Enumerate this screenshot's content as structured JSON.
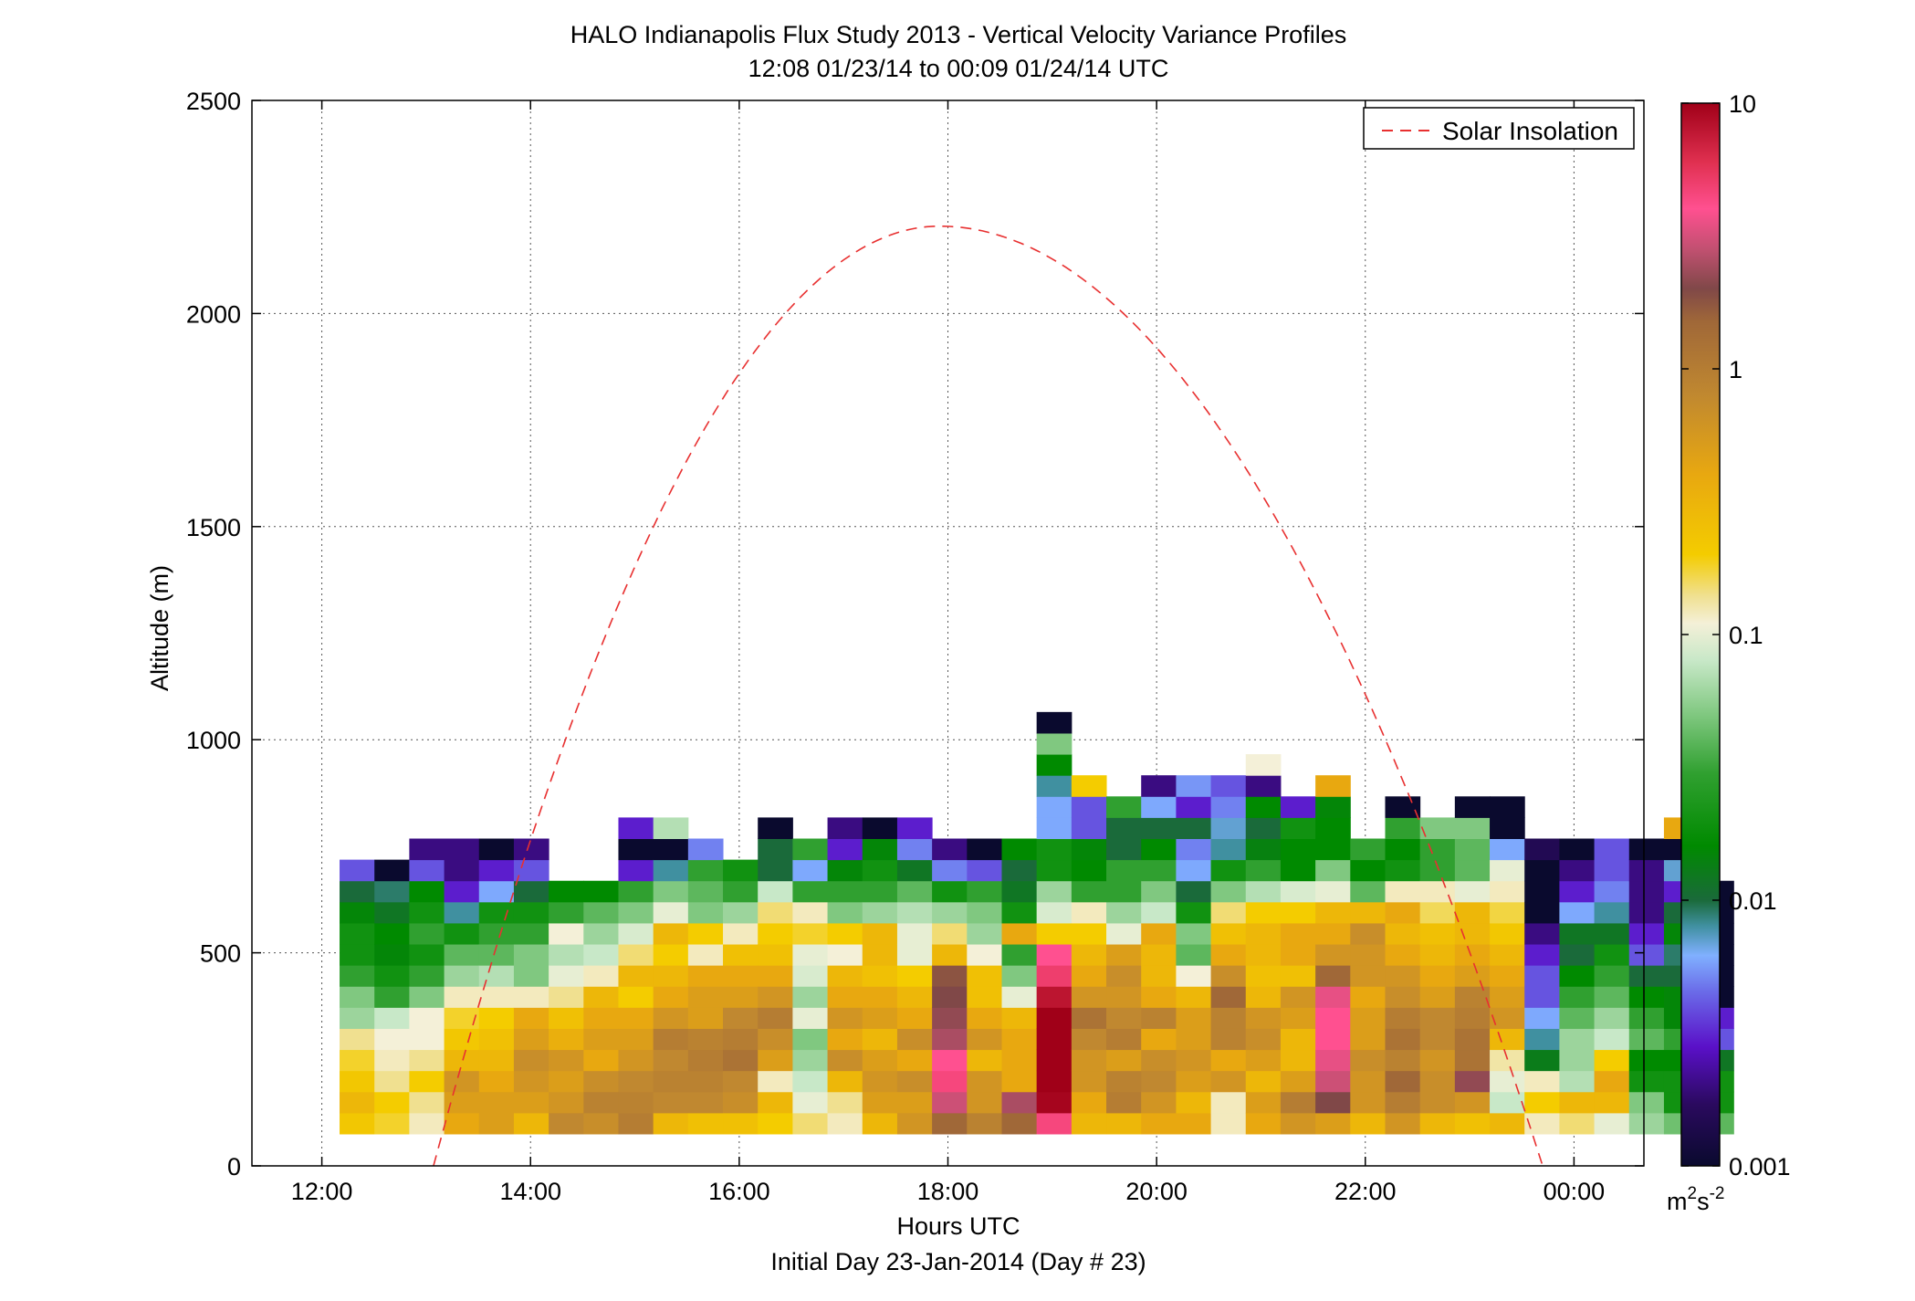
{
  "chart_data": {
    "type": "heatmap",
    "title": "HALO Indianapolis Flux Study 2013 - Vertical Velocity Variance Profiles",
    "subtitle": "12:08 01/23/14 to 00:09 01/24/14  UTC",
    "xlabel": "Hours UTC",
    "xlabel_sub": "Initial Day 23-Jan-2014 (Day # 23)",
    "ylabel": "Altitude (m)",
    "xlim_hours": [
      11.33,
      24.67
    ],
    "ylim": [
      0,
      2500
    ],
    "grid": true,
    "x_ticks": [
      {
        "value": 12,
        "label": "12:00"
      },
      {
        "value": 14,
        "label": "14:00"
      },
      {
        "value": 16,
        "label": "16:00"
      },
      {
        "value": 18,
        "label": "18:00"
      },
      {
        "value": 20,
        "label": "20:00"
      },
      {
        "value": 22,
        "label": "22:00"
      },
      {
        "value": 24,
        "label": "00:00"
      }
    ],
    "y_ticks": [
      {
        "value": 0,
        "label": "0"
      },
      {
        "value": 500,
        "label": "500"
      },
      {
        "value": 1000,
        "label": "1000"
      },
      {
        "value": 1500,
        "label": "1500"
      },
      {
        "value": 2000,
        "label": "2000"
      },
      {
        "value": 2500,
        "label": "2500"
      }
    ],
    "colorbar": {
      "scale": "log",
      "range": [
        0.001,
        10
      ],
      "ticks": [
        {
          "value": 0.001,
          "label": "0.001"
        },
        {
          "value": 0.01,
          "label": "0.01"
        },
        {
          "value": 0.1,
          "label": "0.1"
        },
        {
          "value": 1,
          "label": "1"
        },
        {
          "value": 10,
          "label": "10"
        }
      ],
      "unit_base": "m",
      "unit_sup1": "2",
      "unit_mid": "s",
      "unit_sup2": "-2",
      "stops": [
        {
          "v": 0.001,
          "color": "#0a0a2e"
        },
        {
          "v": 0.0017,
          "color": "#2a0a5e"
        },
        {
          "v": 0.0028,
          "color": "#5a10c8"
        },
        {
          "v": 0.0045,
          "color": "#6a6ae8"
        },
        {
          "v": 0.0062,
          "color": "#80b0ff"
        },
        {
          "v": 0.008,
          "color": "#4090a0"
        },
        {
          "v": 0.01,
          "color": "#1a6a3a"
        },
        {
          "v": 0.016,
          "color": "#008a00"
        },
        {
          "v": 0.03,
          "color": "#30a030"
        },
        {
          "v": 0.05,
          "color": "#80c880"
        },
        {
          "v": 0.08,
          "color": "#c8e8c8"
        },
        {
          "v": 0.11,
          "color": "#f4f0d8"
        },
        {
          "v": 0.14,
          "color": "#f0e090"
        },
        {
          "v": 0.2,
          "color": "#f4cc00"
        },
        {
          "v": 0.4,
          "color": "#e8a810"
        },
        {
          "v": 0.8,
          "color": "#c08830"
        },
        {
          "v": 1.5,
          "color": "#a06838"
        },
        {
          "v": 2.0,
          "color": "#804848"
        },
        {
          "v": 2.8,
          "color": "#c05070"
        },
        {
          "v": 4.0,
          "color": "#ff5090"
        },
        {
          "v": 6.0,
          "color": "#e03050"
        },
        {
          "v": 10,
          "color": "#a00018"
        }
      ]
    },
    "heatmap": {
      "altitude_bins_m": {
        "start": 75,
        "step": 49.5
      },
      "time_start_h": 12.17,
      "time_step_h": 0.334,
      "columns": [
        [
          0.22,
          0.3,
          0.22,
          0.18,
          0.14,
          0.06,
          0.05,
          0.03,
          0.02,
          0.02,
          0.015,
          0.01,
          0.004
        ],
        [
          0.18,
          0.2,
          0.14,
          0.12,
          0.11,
          0.08,
          0.03,
          0.02,
          0.015,
          0.016,
          0.012,
          0.009,
          0.001
        ],
        [
          0.12,
          0.14,
          0.2,
          0.14,
          0.11,
          0.11,
          0.05,
          0.03,
          0.02,
          0.03,
          0.02,
          0.016,
          0.004,
          0.002
        ],
        [
          0.4,
          0.5,
          0.6,
          0.3,
          0.22,
          0.18,
          0.12,
          0.06,
          0.04,
          0.02,
          0.008,
          0.003,
          0.002,
          0.002
        ],
        [
          0.5,
          0.5,
          0.4,
          0.3,
          0.25,
          0.2,
          0.12,
          0.07,
          0.04,
          0.03,
          0.02,
          0.006,
          0.003,
          0.001
        ],
        [
          0.3,
          0.5,
          0.6,
          0.7,
          0.5,
          0.4,
          0.12,
          0.05,
          0.05,
          0.03,
          0.02,
          0.01,
          0.004,
          0.002
        ],
        [
          0.8,
          0.6,
          0.5,
          0.6,
          0.35,
          0.25,
          0.14,
          0.1,
          0.07,
          0.11,
          0.03,
          0.016
        ],
        [
          0.7,
          0.9,
          0.7,
          0.4,
          0.5,
          0.4,
          0.3,
          0.12,
          0.08,
          0.06,
          0.04,
          0.016
        ],
        [
          1.0,
          0.9,
          0.8,
          0.6,
          0.5,
          0.4,
          0.2,
          0.3,
          0.15,
          0.09,
          0.05,
          0.03,
          0.003,
          0.001,
          0.003
        ],
        [
          0.3,
          0.8,
          0.9,
          0.8,
          1.0,
          0.6,
          0.4,
          0.3,
          0.2,
          0.3,
          0.1,
          0.05,
          0.008,
          0.001,
          0.07
        ],
        [
          0.25,
          0.8,
          0.9,
          1.0,
          0.9,
          0.5,
          0.5,
          0.4,
          0.12,
          0.2,
          0.05,
          0.04,
          0.03,
          0.005
        ],
        [
          0.25,
          0.7,
          0.8,
          1.2,
          1.0,
          0.8,
          0.5,
          0.4,
          0.25,
          0.12,
          0.06,
          0.03,
          0.02
        ],
        [
          0.2,
          0.3,
          0.12,
          0.5,
          0.7,
          1.0,
          0.6,
          0.4,
          0.25,
          0.2,
          0.15,
          0.08,
          0.01,
          0.01,
          0.001
        ],
        [
          0.15,
          0.1,
          0.08,
          0.06,
          0.05,
          0.1,
          0.06,
          0.09,
          0.1,
          0.18,
          0.12,
          0.03,
          0.006,
          0.03
        ],
        [
          0.12,
          0.14,
          0.3,
          0.7,
          0.4,
          0.6,
          0.4,
          0.3,
          0.11,
          0.2,
          0.05,
          0.03,
          0.015,
          0.003,
          0.002
        ],
        [
          0.3,
          0.5,
          0.6,
          0.5,
          0.3,
          0.5,
          0.4,
          0.25,
          0.3,
          0.3,
          0.06,
          0.03,
          0.02,
          0.015,
          0.001
        ],
        [
          0.6,
          0.5,
          0.7,
          0.4,
          0.7,
          0.4,
          0.3,
          0.2,
          0.1,
          0.1,
          0.07,
          0.04,
          0.012,
          0.005,
          0.003
        ],
        [
          1.5,
          3.0,
          4.5,
          4.0,
          2.5,
          2.2,
          2.0,
          1.8,
          0.3,
          0.15,
          0.06,
          0.02,
          0.005,
          0.002
        ],
        [
          0.9,
          0.6,
          0.6,
          0.3,
          0.6,
          0.4,
          0.25,
          0.25,
          0.11,
          0.06,
          0.05,
          0.03,
          0.004,
          0.001
        ],
        [
          1.5,
          2.5,
          0.4,
          0.4,
          0.4,
          0.3,
          0.1,
          0.05,
          0.03,
          0.4,
          0.02,
          0.012,
          0.01,
          0.016
        ],
        [
          4.5,
          9.5,
          10,
          10,
          10,
          10,
          8,
          5,
          4,
          0.2,
          0.09,
          0.06,
          0.02,
          0.02,
          0.006,
          0.006,
          0.008,
          0.016,
          0.05,
          0.001
        ],
        [
          0.3,
          0.4,
          0.6,
          0.6,
          0.8,
          1.2,
          0.6,
          0.4,
          0.3,
          0.2,
          0.12,
          0.03,
          0.016,
          0.015,
          0.004,
          0.004,
          0.2
        ],
        [
          0.3,
          1.0,
          0.9,
          0.5,
          1.0,
          0.8,
          0.6,
          0.7,
          0.5,
          0.1,
          0.06,
          0.03,
          0.03,
          0.01,
          0.01,
          0.03
        ],
        [
          0.4,
          0.6,
          0.8,
          0.7,
          0.4,
          0.9,
          0.4,
          0.3,
          0.3,
          0.4,
          0.08,
          0.05,
          0.03,
          0.016,
          0.01,
          0.006,
          0.002
        ],
        [
          0.4,
          0.3,
          0.5,
          0.6,
          0.5,
          0.5,
          0.3,
          0.11,
          0.04,
          0.05,
          0.02,
          0.01,
          0.006,
          0.005,
          0.01,
          0.003,
          0.0055
        ],
        [
          0.12,
          0.12,
          0.6,
          0.4,
          0.9,
          0.9,
          1.5,
          0.7,
          0.4,
          0.25,
          0.15,
          0.05,
          0.02,
          0.008,
          0.007,
          0.005,
          0.004
        ],
        [
          0.4,
          0.5,
          0.3,
          0.5,
          0.7,
          0.6,
          0.3,
          0.25,
          0.3,
          0.3,
          0.2,
          0.07,
          0.03,
          0.014,
          0.01,
          0.016,
          0.002,
          0.11
        ],
        [
          0.6,
          1.0,
          0.5,
          0.3,
          0.3,
          0.5,
          0.6,
          0.25,
          0.4,
          0.4,
          0.2,
          0.09,
          0.016,
          0.016,
          0.02,
          0.003
        ],
        [
          0.5,
          2.0,
          3.0,
          3.5,
          4.0,
          4.0,
          3.5,
          1.5,
          0.6,
          0.4,
          0.3,
          0.1,
          0.05,
          0.016,
          0.016,
          0.015,
          0.4
        ],
        [
          0.3,
          0.6,
          0.6,
          0.7,
          0.5,
          0.5,
          0.4,
          0.6,
          0.6,
          0.7,
          0.3,
          0.04,
          0.016,
          0.03
        ],
        [
          0.6,
          1.0,
          1.5,
          0.9,
          1.2,
          1.0,
          0.7,
          0.6,
          0.4,
          0.3,
          0.4,
          0.12,
          0.02,
          0.016,
          0.03,
          0.001
        ],
        [
          0.3,
          0.7,
          0.7,
          0.6,
          0.8,
          0.8,
          0.5,
          0.4,
          0.3,
          0.25,
          0.16,
          0.12,
          0.03,
          0.03,
          0.05
        ],
        [
          0.25,
          0.6,
          2.2,
          1.2,
          1.2,
          1.0,
          0.9,
          0.5,
          0.4,
          0.3,
          0.3,
          0.1,
          0.04,
          0.04,
          0.05,
          0.001
        ],
        [
          0.3,
          0.08,
          0.1,
          0.13,
          0.3,
          0.6,
          0.5,
          0.4,
          0.3,
          0.22,
          0.17,
          0.12,
          0.1,
          0.006,
          0.001,
          0.001
        ],
        [
          0.12,
          0.2,
          0.12,
          0.013,
          0.008,
          0.006,
          0.004,
          0.004,
          0.003,
          0.002,
          0.001,
          0.001,
          0.001,
          0.0015
        ],
        [
          0.15,
          0.3,
          0.07,
          0.06,
          0.06,
          0.04,
          0.03,
          0.016,
          0.01,
          0.012,
          0.006,
          0.003,
          0.002,
          0.001
        ],
        [
          0.1,
          0.3,
          0.4,
          0.2,
          0.08,
          0.06,
          0.04,
          0.03,
          0.02,
          0.012,
          0.008,
          0.005,
          0.004,
          0.004
        ],
        [
          0.06,
          0.05,
          0.02,
          0.016,
          0.04,
          0.03,
          0.016,
          0.01,
          0.004,
          0.003,
          0.002,
          0.002,
          0.002,
          0.001
        ],
        [
          0.045,
          0.02,
          0.02,
          0.016,
          0.03,
          0.015,
          0.015,
          0.01,
          0.009,
          0.015,
          0.01,
          0.003,
          0.007,
          0.001,
          0.4
        ],
        [
          0.04,
          0.02,
          0.02,
          0.012,
          0.004,
          0.003,
          0.001,
          0.001,
          0.001,
          0.001,
          0.001,
          0.001
        ]
      ]
    },
    "overlay": {
      "name": "Solar Insolation",
      "style": "dashed",
      "color": "#e83030",
      "peak": {
        "x": 17.92,
        "y": 2205
      },
      "x_at_zero": [
        13.07,
        23.7
      ]
    },
    "legend": {
      "placement": "top-right",
      "label": "Solar Insolation"
    }
  }
}
